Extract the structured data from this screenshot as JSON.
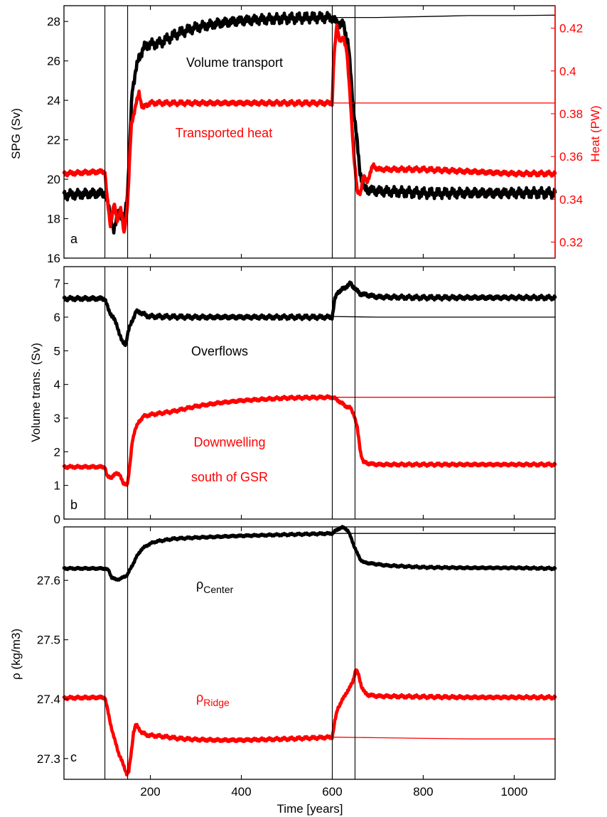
{
  "colors": {
    "primary": "#000000",
    "secondary": "#ff0000"
  },
  "xaxis": {
    "label": "Time [years]",
    "range": [
      10,
      1090
    ],
    "ticks": [
      200,
      400,
      600,
      800,
      1000
    ],
    "tick_labels": [
      "200",
      "400",
      "600",
      "800",
      "1000"
    ]
  },
  "markers": {
    "vertical_lines_years": [
      100,
      150,
      600,
      650
    ]
  },
  "chart_data": [
    {
      "type": "line",
      "panel_letter": "a",
      "ylabel": "SPG (Sv)",
      "ylim": [
        16,
        28.8
      ],
      "yticks": [
        16,
        18,
        20,
        22,
        24,
        26,
        28
      ],
      "ytick_labels": [
        "16",
        "18",
        "20",
        "22",
        "24",
        "26",
        "28"
      ],
      "y2label": "Heat (PW)",
      "y2lim": [
        0.3125,
        0.4305
      ],
      "y2ticks": [
        0.32,
        0.34,
        0.36,
        0.38,
        0.4,
        0.42
      ],
      "y2tick_labels": [
        "0.32",
        "0.34",
        "0.36",
        "0.38",
        "0.4",
        "0.42"
      ],
      "annotations": [
        {
          "text": "Volume transport",
          "color": "black"
        },
        {
          "text": "Transported heat",
          "color": "red"
        }
      ],
      "series": [
        {
          "color": "black",
          "axis": "left",
          "width": "thick",
          "noise": 0.28,
          "x": [
            10,
            100,
            110,
            120,
            130,
            140,
            150,
            160,
            175,
            190,
            220,
            260,
            300,
            350,
            400,
            450,
            500,
            550,
            600,
            605,
            615,
            625,
            635,
            645,
            652,
            660,
            670,
            700,
            800,
            900,
            1000,
            1090
          ],
          "y": [
            19.2,
            19.3,
            18.4,
            17.3,
            18.4,
            17.8,
            19.3,
            24.6,
            26.2,
            26.8,
            26.9,
            27.4,
            27.7,
            27.9,
            28.05,
            28.1,
            28.15,
            28.2,
            28.2,
            28.0,
            27.9,
            27.8,
            26.9,
            24.0,
            22.5,
            20.5,
            19.5,
            19.4,
            19.3,
            19.3,
            19.3,
            19.3
          ]
        },
        {
          "color": "black",
          "axis": "left",
          "width": "thin",
          "noise": 0,
          "x": [
            600,
            700,
            800,
            900,
            1000,
            1090
          ],
          "y": [
            28.2,
            28.2,
            28.25,
            28.3,
            28.3,
            28.32
          ]
        },
        {
          "color": "red",
          "axis": "right",
          "width": "thick",
          "noise": 0.0012,
          "x": [
            10,
            100,
            105,
            112,
            120,
            127,
            135,
            142,
            150,
            158,
            168,
            175,
            183,
            190,
            200,
            300,
            400,
            500,
            600,
            603,
            610,
            617,
            625,
            632,
            640,
            647,
            655,
            662,
            668,
            676,
            690,
            700,
            800,
            900,
            1000,
            1090
          ],
          "y": [
            0.352,
            0.353,
            0.34,
            0.328,
            0.338,
            0.33,
            0.336,
            0.324,
            0.338,
            0.375,
            0.384,
            0.39,
            0.382,
            0.384,
            0.385,
            0.385,
            0.385,
            0.385,
            0.385,
            0.405,
            0.421,
            0.414,
            0.415,
            0.41,
            0.385,
            0.362,
            0.343,
            0.343,
            0.351,
            0.348,
            0.356,
            0.354,
            0.354,
            0.353,
            0.352,
            0.352
          ]
        },
        {
          "color": "red",
          "axis": "right",
          "width": "thin",
          "noise": 0,
          "x": [
            600,
            700,
            800,
            900,
            1000,
            1090
          ],
          "y": [
            0.385,
            0.385,
            0.385,
            0.385,
            0.385,
            0.385
          ]
        }
      ]
    },
    {
      "type": "line",
      "panel_letter": "b",
      "ylabel": "Volume trans. (Sv)",
      "ylim": [
        0,
        7.5
      ],
      "yticks": [
        0,
        1,
        2,
        3,
        4,
        5,
        6,
        7
      ],
      "ytick_labels": [
        "0",
        "1",
        "2",
        "3",
        "4",
        "5",
        "6",
        "7"
      ],
      "annotations": [
        {
          "text": "Overflows",
          "color": "black"
        },
        {
          "text": "Downwelling",
          "color": "red"
        },
        {
          "text": "south of GSR",
          "color": "red"
        }
      ],
      "series": [
        {
          "color": "black",
          "axis": "left",
          "width": "thick",
          "noise": 0.07,
          "x": [
            10,
            100,
            108,
            118,
            128,
            138,
            145,
            152,
            160,
            168,
            178,
            190,
            200,
            300,
            400,
            500,
            600,
            605,
            612,
            620,
            630,
            640,
            650,
            660,
            680,
            700,
            800,
            900,
            1000,
            1090
          ],
          "y": [
            6.55,
            6.55,
            6.2,
            6.0,
            5.7,
            5.25,
            5.2,
            5.6,
            5.9,
            6.15,
            6.15,
            6.05,
            6.02,
            6.0,
            6.0,
            6.0,
            6.0,
            6.5,
            6.75,
            6.8,
            6.9,
            7.0,
            6.85,
            6.7,
            6.65,
            6.6,
            6.58,
            6.58,
            6.58,
            6.58
          ]
        },
        {
          "color": "black",
          "axis": "left",
          "width": "thin",
          "noise": 0,
          "x": [
            600,
            700,
            800,
            900,
            1000,
            1090
          ],
          "y": [
            6.02,
            6.0,
            6.0,
            6.0,
            6.0,
            6.0
          ]
        },
        {
          "color": "red",
          "axis": "left",
          "width": "thick",
          "noise": 0.05,
          "x": [
            10,
            100,
            105,
            115,
            125,
            132,
            140,
            150,
            155,
            160,
            165,
            175,
            185,
            200,
            250,
            300,
            350,
            400,
            450,
            500,
            550,
            600,
            610,
            620,
            630,
            640,
            648,
            655,
            662,
            668,
            680,
            700,
            800,
            900,
            1000,
            1090
          ],
          "y": [
            1.55,
            1.55,
            1.25,
            1.25,
            1.35,
            1.35,
            1.05,
            1.05,
            1.6,
            2.3,
            2.6,
            2.9,
            3.05,
            3.1,
            3.2,
            3.35,
            3.45,
            3.52,
            3.56,
            3.6,
            3.61,
            3.62,
            3.55,
            3.45,
            3.35,
            3.3,
            3.1,
            2.7,
            2.0,
            1.7,
            1.65,
            1.62,
            1.62,
            1.62,
            1.62,
            1.62
          ]
        },
        {
          "color": "red",
          "axis": "left",
          "width": "thin",
          "noise": 0,
          "x": [
            600,
            700,
            800,
            900,
            1000,
            1090
          ],
          "y": [
            3.62,
            3.62,
            3.62,
            3.62,
            3.62,
            3.62
          ]
        }
      ]
    },
    {
      "type": "line",
      "panel_letter": "c",
      "ylabel": "ρ (kg/m3)",
      "ylim": [
        27.265,
        27.69
      ],
      "yticks": [
        27.3,
        27.4,
        27.5,
        27.6
      ],
      "ytick_labels": [
        "27.3",
        "27.4",
        "27.5",
        "27.6"
      ],
      "annotations": [
        {
          "text": "ρ",
          "sub": "Center",
          "color": "black"
        },
        {
          "text": "ρ",
          "sub": "Ridge",
          "color": "red"
        }
      ],
      "series": [
        {
          "color": "black",
          "axis": "left",
          "width": "thick",
          "noise": 0.002,
          "x": [
            10,
            100,
            108,
            115,
            125,
            135,
            145,
            150,
            160,
            170,
            180,
            195,
            210,
            250,
            300,
            400,
            500,
            550,
            600,
            610,
            620,
            628,
            635,
            642,
            648,
            655,
            662,
            670,
            690,
            720,
            800,
            900,
            1000,
            1090
          ],
          "y": [
            27.62,
            27.62,
            27.617,
            27.605,
            27.601,
            27.603,
            27.607,
            27.61,
            27.625,
            27.64,
            27.652,
            27.66,
            27.665,
            27.67,
            27.672,
            27.675,
            27.677,
            27.678,
            27.679,
            27.685,
            27.689,
            27.688,
            27.683,
            27.67,
            27.658,
            27.645,
            27.635,
            27.63,
            27.628,
            27.625,
            27.622,
            27.621,
            27.621,
            27.62
          ]
        },
        {
          "color": "black",
          "axis": "left",
          "width": "thin",
          "noise": 0,
          "x": [
            600,
            700,
            800,
            900,
            1000,
            1090
          ],
          "y": [
            27.679,
            27.679,
            27.679,
            27.679,
            27.679,
            27.679
          ]
        },
        {
          "color": "red",
          "axis": "left",
          "width": "thick",
          "noise": 0.003,
          "x": [
            10,
            100,
            105,
            112,
            120,
            130,
            140,
            148,
            152,
            158,
            163,
            168,
            173,
            180,
            190,
            200,
            230,
            260,
            300,
            350,
            400,
            500,
            600,
            605,
            612,
            620,
            630,
            638,
            645,
            652,
            658,
            665,
            672,
            680,
            700,
            800,
            900,
            1000,
            1090
          ],
          "y": [
            27.402,
            27.403,
            27.385,
            27.36,
            27.335,
            27.31,
            27.29,
            27.275,
            27.275,
            27.31,
            27.345,
            27.357,
            27.352,
            27.345,
            27.34,
            27.339,
            27.337,
            27.334,
            27.332,
            27.331,
            27.331,
            27.333,
            27.336,
            27.36,
            27.385,
            27.395,
            27.41,
            27.418,
            27.43,
            27.45,
            27.44,
            27.42,
            27.41,
            27.407,
            27.405,
            27.404,
            27.403,
            27.403,
            27.403
          ]
        },
        {
          "color": "red",
          "axis": "left",
          "width": "thin",
          "noise": 0,
          "x": [
            600,
            700,
            800,
            900,
            1000,
            1090
          ],
          "y": [
            27.336,
            27.335,
            27.334,
            27.333,
            27.333,
            27.333
          ]
        }
      ]
    }
  ]
}
